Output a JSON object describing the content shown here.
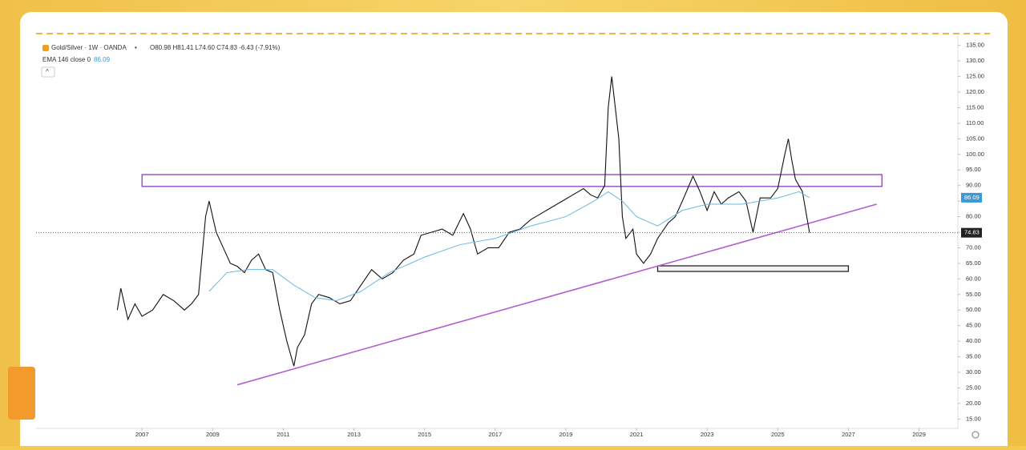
{
  "chart_data": {
    "type": "line",
    "header": {
      "symbol": "Gold/Silver · 1W · OANDA",
      "ohlc": "O80.98 H81.41 L74.60 C74.83 -6.43 (-7.91%)",
      "indicator": "EMA 146 close 0"
    },
    "last_price": 74.83,
    "ema_value": 86.09,
    "xlim": [
      2004,
      2030.1
    ],
    "xticks": [
      2007,
      2009,
      2011,
      2013,
      2015,
      2017,
      2019,
      2021,
      2023,
      2025,
      2027,
      2029
    ],
    "ylim": [
      12,
      138
    ],
    "yticks": [
      {
        "value": 15,
        "label": "15.00"
      },
      {
        "value": 20,
        "label": "20.00"
      },
      {
        "value": 25,
        "label": "25.00"
      },
      {
        "value": 30,
        "label": "30.00"
      },
      {
        "value": 35,
        "label": "35.00"
      },
      {
        "value": 40,
        "label": "40.00"
      },
      {
        "value": 45,
        "label": "45.00"
      },
      {
        "value": 50,
        "label": "50.00"
      },
      {
        "value": 55,
        "label": "55.00"
      },
      {
        "value": 60,
        "label": "60.00"
      },
      {
        "value": 65,
        "label": "65.00"
      },
      {
        "value": 70,
        "label": "70.00"
      },
      {
        "value": 75,
        "label": "75.00"
      },
      {
        "value": 80,
        "label": "80.00"
      },
      {
        "value": 85,
        "label": "85.00"
      },
      {
        "value": 90,
        "label": "90.00"
      },
      {
        "value": 95,
        "label": "95.00"
      },
      {
        "value": 100,
        "label": "100.00"
      },
      {
        "value": 105,
        "label": "105.00"
      },
      {
        "value": 110,
        "label": "110.00"
      },
      {
        "value": 115,
        "label": "115.00"
      },
      {
        "value": 120,
        "label": "120.00"
      },
      {
        "value": 125,
        "label": "125.00"
      },
      {
        "value": 130,
        "label": "130.00"
      },
      {
        "value": 135,
        "label": "135.00"
      }
    ],
    "series": [
      {
        "color": "#111111",
        "x": [
          2006.3,
          2006.4,
          2006.6,
          2006.8,
          2007.0,
          2007.3,
          2007.6,
          2007.9,
          2008.2,
          2008.4,
          2008.6,
          2008.8,
          2008.9,
          2009.1,
          2009.3,
          2009.5,
          2009.7,
          2009.9,
          2010.1,
          2010.3,
          2010.5,
          2010.7,
          2010.9,
          2011.1,
          2011.3,
          2011.4,
          2011.6,
          2011.8,
          2012.0,
          2012.3,
          2012.6,
          2012.9,
          2013.2,
          2013.5,
          2013.8,
          2014.1,
          2014.4,
          2014.7,
          2014.9,
          2015.2,
          2015.5,
          2015.8,
          2016.1,
          2016.3,
          2016.5,
          2016.8,
          2017.1,
          2017.4,
          2017.7,
          2018.0,
          2018.3,
          2018.6,
          2018.9,
          2019.2,
          2019.5,
          2019.7,
          2019.9,
          2020.1,
          2020.2,
          2020.3,
          2020.4,
          2020.5,
          2020.6,
          2020.7,
          2020.9,
          2021.0,
          2021.2,
          2021.4,
          2021.6,
          2021.9,
          2022.1,
          2022.3,
          2022.6,
          2022.8,
          2023.0,
          2023.2,
          2023.4,
          2023.6,
          2023.9,
          2024.1,
          2024.3,
          2024.5,
          2024.8,
          2025.0,
          2025.2,
          2025.3,
          2025.4,
          2025.5,
          2025.7,
          2025.9
        ],
        "values": [
          50,
          57,
          47,
          52,
          48,
          50,
          55,
          53,
          50,
          52,
          55,
          80,
          85,
          75,
          70,
          65,
          64,
          62,
          66,
          68,
          63,
          62,
          50,
          40,
          32,
          38,
          42,
          52,
          55,
          54,
          52,
          53,
          58,
          63,
          60,
          62,
          66,
          68,
          74,
          75,
          76,
          74,
          81,
          76,
          68,
          70,
          70,
          75,
          76,
          79,
          81,
          83,
          85,
          87,
          89,
          87,
          86,
          90,
          115,
          125,
          115,
          105,
          80,
          73,
          76,
          68,
          65,
          68,
          73,
          78,
          80,
          85,
          93,
          88,
          82,
          88,
          84,
          86,
          88,
          85,
          75,
          86,
          86,
          89,
          100,
          105,
          98,
          92,
          88,
          74.83
        ]
      },
      {
        "color": "#6cb8e0",
        "x": [
          2008.9,
          2009.4,
          2010.0,
          2010.7,
          2011.3,
          2011.9,
          2012.5,
          2013.2,
          2014.0,
          2015.0,
          2016.0,
          2017.0,
          2018.0,
          2019.0,
          2019.8,
          2020.2,
          2020.6,
          2021.0,
          2021.6,
          2022.3,
          2023.0,
          2024.0,
          2025.0,
          2025.6,
          2025.9
        ],
        "values": [
          56,
          62,
          63,
          63,
          58,
          54,
          53,
          56,
          62,
          67,
          71,
          73,
          77,
          80,
          85,
          88,
          85,
          80,
          77,
          82,
          84,
          84,
          86,
          88,
          86.09
        ]
      }
    ],
    "drawings": {
      "trendline": {
        "x": [
          2009.7,
          2027.8
        ],
        "y": [
          26,
          84
        ]
      },
      "resistance_zone": {
        "x": [
          2007.0,
          2027.95
        ],
        "y": [
          89.7,
          93.5
        ]
      },
      "support_zone": {
        "x": [
          2021.6,
          2027.0
        ],
        "y": [
          62.4,
          64.2
        ]
      }
    }
  }
}
